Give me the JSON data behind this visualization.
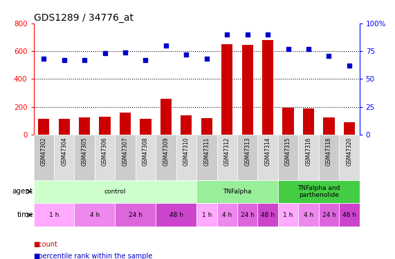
{
  "title": "GDS1289 / 34776_at",
  "samples": [
    "GSM47302",
    "GSM47304",
    "GSM47305",
    "GSM47306",
    "GSM47307",
    "GSM47308",
    "GSM47309",
    "GSM47310",
    "GSM47311",
    "GSM47312",
    "GSM47313",
    "GSM47314",
    "GSM47315",
    "GSM47316",
    "GSM47318",
    "GSM47320"
  ],
  "counts": [
    115,
    115,
    125,
    130,
    160,
    115,
    260,
    140,
    120,
    650,
    645,
    680,
    195,
    190,
    125,
    90
  ],
  "percentiles": [
    68,
    67,
    67,
    73,
    74,
    67,
    80,
    72,
    68,
    90,
    90,
    90,
    77,
    77,
    71,
    62
  ],
  "bar_color": "#cc0000",
  "dot_color": "#0000cc",
  "ylim_left": [
    0,
    800
  ],
  "ylim_right": [
    0,
    100
  ],
  "yticks_left": [
    0,
    200,
    400,
    600,
    800
  ],
  "yticks_right": [
    0,
    25,
    50,
    75,
    100
  ],
  "agent_groups": [
    {
      "label": "control",
      "start": 0,
      "end": 8,
      "color": "#ccffcc"
    },
    {
      "label": "TNFalpha",
      "start": 8,
      "end": 12,
      "color": "#99ee99"
    },
    {
      "label": "TNFalpha and\nparthenolide",
      "start": 12,
      "end": 16,
      "color": "#44cc44"
    }
  ],
  "time_groups": [
    {
      "label": "1 h",
      "start": 0,
      "end": 2,
      "color": "#ffaaff"
    },
    {
      "label": "4 h",
      "start": 2,
      "end": 4,
      "color": "#ee88ee"
    },
    {
      "label": "24 h",
      "start": 4,
      "end": 6,
      "color": "#dd66dd"
    },
    {
      "label": "48 h",
      "start": 6,
      "end": 8,
      "color": "#cc44cc"
    },
    {
      "label": "1 h",
      "start": 8,
      "end": 9,
      "color": "#ffaaff"
    },
    {
      "label": "4 h",
      "start": 9,
      "end": 10,
      "color": "#ee88ee"
    },
    {
      "label": "24 h",
      "start": 10,
      "end": 11,
      "color": "#dd66dd"
    },
    {
      "label": "48 h",
      "start": 11,
      "end": 12,
      "color": "#cc44cc"
    },
    {
      "label": "1 h",
      "start": 12,
      "end": 13,
      "color": "#ffaaff"
    },
    {
      "label": "4 h",
      "start": 13,
      "end": 14,
      "color": "#ee88ee"
    },
    {
      "label": "24 h",
      "start": 14,
      "end": 15,
      "color": "#dd66dd"
    },
    {
      "label": "48 h",
      "start": 15,
      "end": 16,
      "color": "#cc44cc"
    }
  ],
  "sample_cell_colors": [
    "#cccccc",
    "#dddddd"
  ],
  "legend_count_color": "#cc0000",
  "legend_dot_color": "#0000cc",
  "background_color": "#ffffff",
  "label_fontsize": 7,
  "title_fontsize": 10,
  "tick_fontsize": 7.5
}
